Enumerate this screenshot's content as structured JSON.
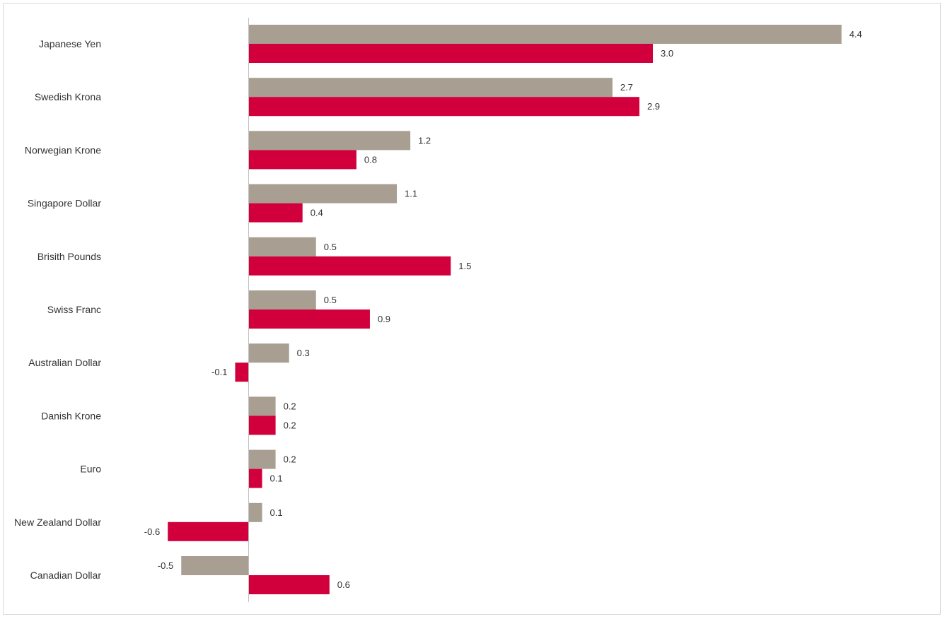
{
  "chart_data": {
    "type": "bar",
    "orientation": "horizontal",
    "categories": [
      "Japanese Yen",
      "Swedish Krona",
      "Norwegian Krone",
      "Singapore Dollar",
      "Brisith Pounds",
      "Swiss Franc",
      "Australian Dollar",
      "Danish Krone",
      "Euro",
      "New Zealand Dollar",
      "Canadian Dollar"
    ],
    "series": [
      {
        "color": "#a89e92",
        "values": [
          4.4,
          2.7,
          1.2,
          1.1,
          0.5,
          0.5,
          0.3,
          0.2,
          0.2,
          0.1,
          -0.5
        ]
      },
      {
        "color": "#d1003c",
        "values": [
          3.0,
          2.9,
          0.8,
          0.4,
          1.5,
          0.9,
          -0.1,
          0.2,
          0.1,
          -0.6,
          0.6
        ]
      }
    ],
    "value_format": "0.0",
    "grid": false,
    "legend": "none",
    "title": "",
    "xlabel": "",
    "ylabel": ""
  }
}
